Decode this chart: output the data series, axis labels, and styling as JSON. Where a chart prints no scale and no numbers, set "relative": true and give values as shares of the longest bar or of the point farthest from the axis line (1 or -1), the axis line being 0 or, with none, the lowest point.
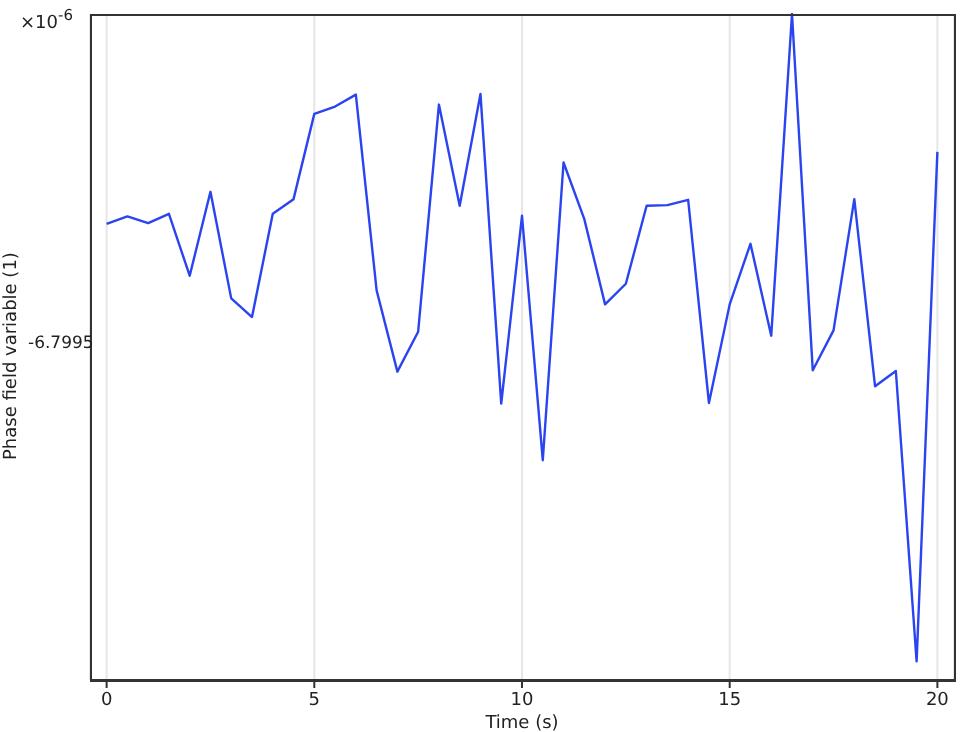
{
  "chart_data": {
    "type": "line",
    "xlabel": "Time (s)",
    "ylabel": "Phase field variable (1)",
    "relative": true,
    "annotations": [
      "×10$^{-6}$",
      "-6.7995"
    ],
    "x": [
      0,
      0.5,
      1,
      1.5,
      2,
      2.5,
      3,
      3.5,
      4,
      4.5,
      5,
      5.5,
      6,
      6.5,
      7,
      7.5,
      8,
      8.5,
      9,
      9.5,
      10,
      10.5,
      11,
      11.5,
      12,
      12.5,
      13,
      13.5,
      14,
      14.5,
      15,
      15.5,
      16,
      16.5,
      17,
      17.5,
      18,
      18.5,
      19,
      19.5,
      20
    ],
    "series": [
      {
        "color": "#2a44f0",
        "values": [
          0.685,
          0.696,
          0.686,
          0.7,
          0.607,
          0.733,
          0.573,
          0.545,
          0.7,
          0.722,
          0.85,
          0.861,
          0.879,
          0.585,
          0.463,
          0.523,
          0.864,
          0.712,
          0.88,
          0.415,
          0.697,
          0.33,
          0.777,
          0.692,
          0.564,
          0.595,
          0.712,
          0.713,
          0.721,
          0.416,
          0.564,
          0.655,
          0.517,
          1,
          0.465,
          0.525,
          0.722,
          0.441,
          0.464,
          0.028,
          0.793
        ]
      }
    ],
    "xlim": [
      -0.4,
      20.4
    ],
    "xticks": [
      0,
      5,
      10,
      15,
      20
    ],
    "grid": "x",
    "marker": "none",
    "line_style": "solid"
  }
}
